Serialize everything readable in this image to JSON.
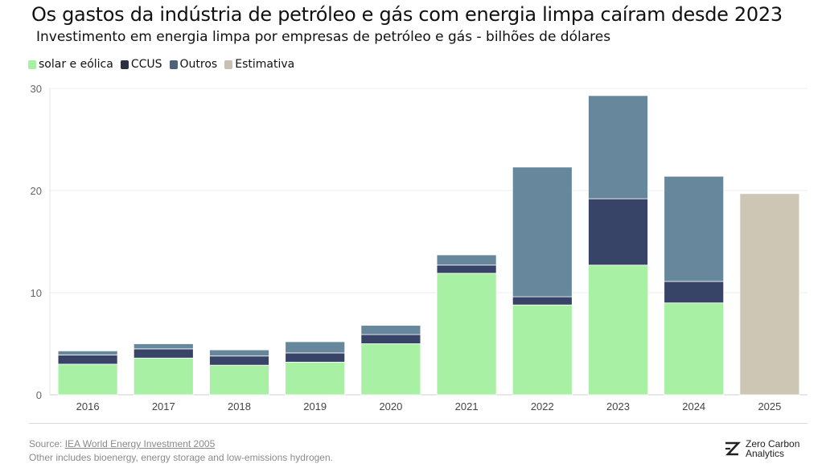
{
  "chart_data": {
    "type": "bar",
    "stacked": true,
    "title": "Os gastos da indústria de petróleo e gás com energia limpa caíram desde 2023",
    "subtitle": "Investimento em energia limpa por empresas de petróleo e gás - bilhões de dólares",
    "categories": [
      "2016",
      "2017",
      "2018",
      "2019",
      "2020",
      "2021",
      "2022",
      "2023",
      "2024",
      "2025"
    ],
    "series": [
      {
        "name": "solar e eólica",
        "color": "#a8f0a4",
        "values": [
          3.0,
          3.6,
          2.9,
          3.2,
          5.0,
          11.9,
          8.8,
          12.7,
          9.0,
          null
        ]
      },
      {
        "name": "CCUS",
        "color": "#374468",
        "values": [
          0.9,
          0.9,
          0.9,
          0.9,
          0.9,
          0.8,
          0.8,
          6.5,
          2.1,
          null
        ]
      },
      {
        "name": "Outros",
        "color": "#67879c",
        "values": [
          0.4,
          0.5,
          0.6,
          1.1,
          0.9,
          1.0,
          12.7,
          10.1,
          10.3,
          null
        ]
      },
      {
        "name": "Estimativa",
        "color": "#cdc6b4",
        "values": [
          null,
          null,
          null,
          null,
          null,
          null,
          null,
          null,
          null,
          19.7
        ]
      }
    ],
    "ylim": [
      0,
      30
    ],
    "yticks": [
      "0",
      "10",
      "20",
      "30"
    ],
    "grid": true,
    "legend_position": "top-left"
  },
  "legend": [
    {
      "label": "solar e eólica",
      "color": "#a8f0a4"
    },
    {
      "label": "CCUS",
      "color": "#2b3142"
    },
    {
      "label": "Outros",
      "color": "#4d6379"
    },
    {
      "label": "Estimativa",
      "color": "#c7c1b2"
    }
  ],
  "footer": {
    "source_prefix": "Source: ",
    "source_link": "IEA World Energy Investment 2005",
    "note": "Other includes bioenergy, energy storage and low-emissions hydrogen.",
    "brand_line1": "Zero Carbon",
    "brand_line2": "Analytics"
  }
}
